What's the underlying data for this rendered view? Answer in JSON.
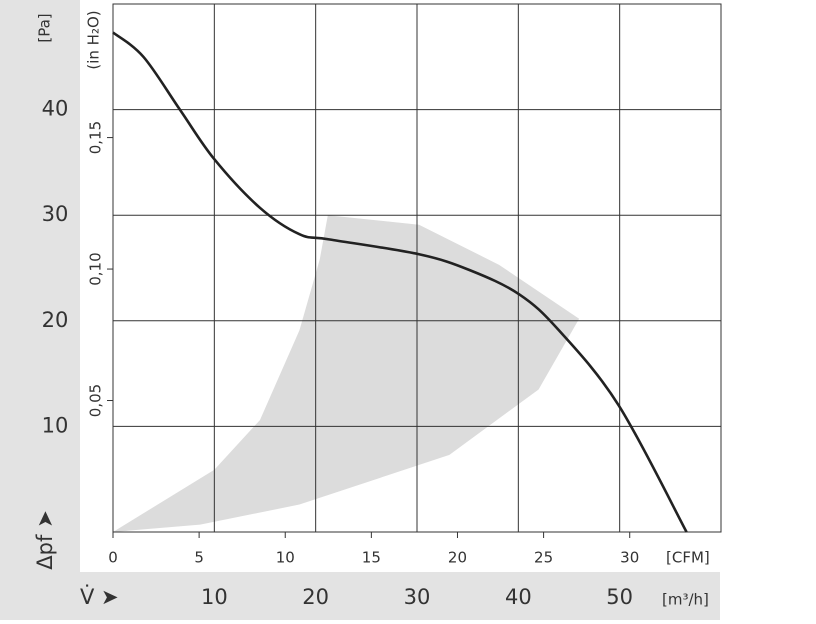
{
  "chart_data": {
    "type": "line",
    "y_label": "[Pa]",
    "y2_label": "(in H₂O)",
    "y_arrow_label": "Δpf ➤",
    "x_arrow_label": "V̇ ➤",
    "x_label": "[m³/h]",
    "x2_label": "[CFM]",
    "xlim": [
      0,
      60
    ],
    "xticks": [
      10,
      20,
      30,
      40,
      50
    ],
    "x2lim": [
      0,
      35.3
    ],
    "x2ticks": [
      0,
      5,
      10,
      15,
      20,
      25,
      30
    ],
    "ylim": [
      0,
      50
    ],
    "yticks": [
      10,
      20,
      30,
      40
    ],
    "y2lim": [
      0,
      0.2008
    ],
    "y2ticks": [
      {
        "value": 0.05,
        "label": "0,05"
      },
      {
        "value": 0.1,
        "label": "0,10"
      },
      {
        "value": 0.15,
        "label": "0,15"
      }
    ],
    "grid": true,
    "series": [
      {
        "color": "#222222",
        "x": [
          0,
          3,
          6.6,
          10,
          14.5,
          18.4,
          21.4,
          30.2,
          35.2,
          40.1,
          44,
          49.9,
          56.6
        ],
        "values": [
          47.3,
          45,
          40,
          35.3,
          30.7,
          28.2,
          27.7,
          26.3,
          24.8,
          22.5,
          19.1,
          12,
          0
        ]
      }
    ],
    "region": {
      "color": "#dcdcdc",
      "x": [
        0,
        10,
        14.5,
        18.4,
        20.4,
        21.2,
        30.2,
        38.1,
        46,
        42,
        33.2,
        18.4,
        8.6
      ],
      "y": [
        0,
        5.9,
        10.6,
        19.1,
        25.8,
        30,
        29.1,
        25.3,
        20.2,
        13.5,
        7.3,
        2.6,
        0.7
      ]
    }
  }
}
